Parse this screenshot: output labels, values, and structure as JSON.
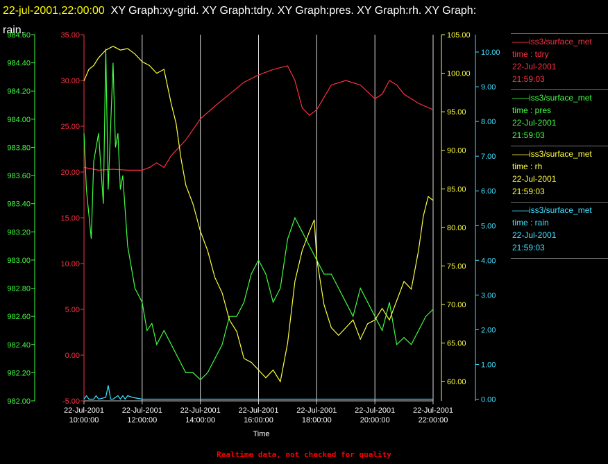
{
  "header": {
    "timestamp": "22-jul-2001,22:00:00",
    "graphs_text": "XY Graph:xy-grid.  XY Graph:tdry.  XY Graph:pres.  XY Graph:rh.  XY Graph:",
    "graphs_text_line2": "rain."
  },
  "legend": [
    {
      "source": "——iss3/surface_met",
      "field": "time : tdry",
      "date": "22-Jul-2001",
      "time": "21:59:03",
      "color": "#ff3040"
    },
    {
      "source": "——iss3/surface_met",
      "field": "time : pres",
      "date": "22-Jul-2001",
      "time": "21:59:03",
      "color": "#40ff40"
    },
    {
      "source": "——iss3/surface_met",
      "field": "time : rh",
      "date": "22-Jul-2001",
      "time": "21:59:03",
      "color": "#ffff40"
    },
    {
      "source": "——iss3/surface_met",
      "field": "time : rain",
      "date": "22-Jul-2001",
      "time": "21:59:03",
      "color": "#40e0ff"
    }
  ],
  "footer": "Realtime data, not checked for quality",
  "chart_data": {
    "type": "line",
    "xlabel": "Time",
    "x_ticks": [
      {
        "date": "22-Jul-2001",
        "time": "10:00:00"
      },
      {
        "date": "22-Jul-2001",
        "time": "12:00:00"
      },
      {
        "date": "22-Jul-2001",
        "time": "14:00:00"
      },
      {
        "date": "22-Jul-2001",
        "time": "16:00:00"
      },
      {
        "date": "22-Jul-2001",
        "time": "18:00:00"
      },
      {
        "date": "22-Jul-2001",
        "time": "20:00:00"
      },
      {
        "date": "22-Jul-2001",
        "time": "22:00:00"
      }
    ],
    "xlim": [
      "22-Jul-2001 10:00:00",
      "22-Jul-2001 22:00:00"
    ],
    "grid": "vertical",
    "axes": [
      {
        "id": "pres",
        "color": "#40ff40",
        "ylim": [
          982.0,
          984.6
        ],
        "ticks": [
          "982.00",
          "982.20",
          "982.40",
          "982.60",
          "982.80",
          "983.00",
          "983.20",
          "983.40",
          "983.60",
          "983.80",
          "984.00",
          "984.20",
          "984.40",
          "984.60"
        ]
      },
      {
        "id": "tdry",
        "color": "#ff3040",
        "ylim": [
          -5,
          35
        ],
        "ticks": [
          "-5.00",
          "0.00",
          "5.00",
          "10.00",
          "15.00",
          "20.00",
          "25.00",
          "30.00",
          "35.00"
        ]
      },
      {
        "id": "rh",
        "color": "#ffff40",
        "ylim": [
          57.5,
          105
        ],
        "ticks": [
          "60.00",
          "65.00",
          "70.00",
          "75.00",
          "80.00",
          "85.00",
          "90.00",
          "95.00",
          "100.00",
          "105.00"
        ]
      },
      {
        "id": "rain",
        "color": "#40e0ff",
        "ylim": [
          -0.05,
          10.5
        ],
        "ticks": [
          "0.00",
          "1.00",
          "2.00",
          "3.00",
          "4.00",
          "5.00",
          "6.00",
          "7.00",
          "8.00",
          "9.00",
          "10.00"
        ]
      }
    ],
    "series": [
      {
        "axis": "tdry",
        "color": "#ff3040",
        "x": [
          "10:00",
          "10:30",
          "11:00",
          "11:30",
          "12:00",
          "12:15",
          "12:30",
          "12:45",
          "13:00",
          "13:30",
          "14:00",
          "14:30",
          "15:00",
          "15:30",
          "16:00",
          "16:30",
          "17:00",
          "17:15",
          "17:30",
          "17:45",
          "18:00",
          "18:30",
          "19:00",
          "19:30",
          "20:00",
          "20:15",
          "20:30",
          "20:45",
          "21:00",
          "21:30",
          "22:00"
        ],
        "y": [
          20.5,
          20.2,
          20.3,
          20.2,
          20.2,
          20.5,
          21.0,
          20.5,
          21.8,
          23.5,
          25.8,
          27.2,
          28.5,
          29.8,
          30.6,
          31.2,
          31.6,
          30.0,
          27.0,
          26.2,
          26.8,
          29.5,
          30.0,
          29.5,
          28.0,
          28.5,
          30.0,
          29.5,
          28.5,
          27.5,
          26.8
        ]
      },
      {
        "axis": "pres",
        "color": "#40ff40",
        "x": [
          "10:00",
          "10:05",
          "10:15",
          "10:20",
          "10:30",
          "10:40",
          "10:45",
          "10:50",
          "11:00",
          "11:05",
          "11:10",
          "11:15",
          "11:20",
          "11:30",
          "11:45",
          "12:00",
          "12:10",
          "12:20",
          "12:30",
          "12:45",
          "13:00",
          "13:15",
          "13:30",
          "13:45",
          "14:00",
          "14:15",
          "14:30",
          "14:45",
          "15:00",
          "15:15",
          "15:30",
          "15:45",
          "16:00",
          "16:15",
          "16:30",
          "16:45",
          "17:00",
          "17:15",
          "17:30",
          "17:45",
          "18:00",
          "18:15",
          "18:30",
          "18:45",
          "19:00",
          "19:15",
          "19:30",
          "19:45",
          "20:00",
          "20:15",
          "20:30",
          "20:45",
          "21:00",
          "21:15",
          "21:30",
          "21:45",
          "22:00"
        ],
        "y": [
          983.9,
          983.5,
          983.15,
          983.7,
          983.9,
          983.4,
          984.5,
          983.5,
          984.4,
          983.8,
          983.9,
          983.5,
          983.6,
          983.1,
          982.8,
          982.7,
          982.5,
          982.55,
          982.4,
          982.5,
          982.4,
          982.3,
          982.2,
          982.2,
          982.15,
          982.2,
          982.3,
          982.4,
          982.6,
          982.6,
          982.7,
          982.9,
          983.0,
          982.9,
          982.7,
          982.8,
          983.15,
          983.3,
          983.2,
          983.1,
          983.0,
          982.9,
          982.9,
          982.8,
          982.7,
          982.6,
          982.8,
          982.7,
          982.6,
          982.5,
          982.7,
          982.4,
          982.45,
          982.4,
          982.5,
          982.6,
          982.65
        ]
      },
      {
        "axis": "rh",
        "color": "#ffff40",
        "x": [
          "10:00",
          "10:10",
          "10:20",
          "10:30",
          "10:45",
          "11:00",
          "11:15",
          "11:30",
          "11:45",
          "12:00",
          "12:15",
          "12:30",
          "12:45",
          "12:50",
          "13:00",
          "13:10",
          "13:20",
          "13:30",
          "13:45",
          "14:00",
          "14:15",
          "14:30",
          "14:45",
          "15:00",
          "15:15",
          "15:30",
          "15:45",
          "16:00",
          "16:15",
          "16:30",
          "16:45",
          "17:00",
          "17:15",
          "17:30",
          "17:45",
          "17:55",
          "18:00",
          "18:15",
          "18:30",
          "18:45",
          "19:00",
          "19:15",
          "19:30",
          "19:45",
          "20:00",
          "20:15",
          "20:30",
          "20:45",
          "21:00",
          "21:15",
          "21:30",
          "21:40",
          "21:50",
          "22:00"
        ],
        "y": [
          99.0,
          100.5,
          101.0,
          102.0,
          103.0,
          103.5,
          103.0,
          103.2,
          102.5,
          101.5,
          101.0,
          100.0,
          100.5,
          99.0,
          96.0,
          93.5,
          89.0,
          85.5,
          83.0,
          79.5,
          77.0,
          73.5,
          71.5,
          68.0,
          66.5,
          63.0,
          62.5,
          61.5,
          60.5,
          61.5,
          60.0,
          65.0,
          73.0,
          77.0,
          79.5,
          81.0,
          76.0,
          70.0,
          67.0,
          66.0,
          67.0,
          68.0,
          65.5,
          67.5,
          68.0,
          69.5,
          68.0,
          70.5,
          73.0,
          72.0,
          77.0,
          81.5,
          84.0,
          83.5
        ]
      },
      {
        "axis": "rain",
        "color": "#40e0ff",
        "x": [
          "10:00",
          "10:05",
          "10:10",
          "10:20",
          "10:25",
          "10:30",
          "10:45",
          "10:50",
          "10:55",
          "11:00",
          "11:10",
          "11:15",
          "11:20",
          "11:25",
          "11:30",
          "11:40",
          "12:00",
          "14:00",
          "16:00",
          "18:00",
          "20:00",
          "22:00"
        ],
        "y": [
          0.0,
          0.1,
          0.0,
          0.0,
          0.1,
          0.0,
          0.05,
          0.4,
          0.0,
          0.0,
          0.1,
          0.0,
          0.1,
          0.0,
          0.1,
          0.05,
          0.0,
          0.0,
          0.0,
          0.0,
          0.0,
          0.0
        ]
      }
    ]
  }
}
